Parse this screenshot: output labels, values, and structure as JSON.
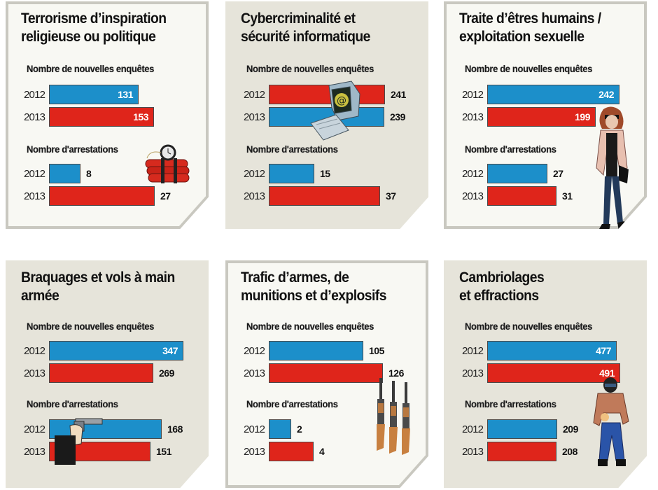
{
  "chart_data": [
    {
      "type": "bar",
      "orientation": "horizontal",
      "title": "Terrorisme d’inspiration religieuse ou politique",
      "categories": [
        "2012",
        "2013"
      ],
      "sections": [
        {
          "label": "Nombre de nouvelles enquêtes",
          "values": [
            131,
            153
          ],
          "colors": [
            "blue",
            "red"
          ]
        },
        {
          "label": "Nombre d'arrestations",
          "values": [
            8,
            27
          ],
          "colors": [
            "blue",
            "red"
          ]
        }
      ],
      "illustration": "dynamite-bomb-icon"
    },
    {
      "type": "bar",
      "orientation": "horizontal",
      "title": "Cybercriminalité et sécurité informatique",
      "categories": [
        "2012",
        "2013"
      ],
      "sections": [
        {
          "label": "Nombre de nouvelles enquêtes",
          "values": [
            241,
            239
          ],
          "colors": [
            "red",
            "blue"
          ]
        },
        {
          "label": "Nombre d'arrestations",
          "values": [
            15,
            37
          ],
          "colors": [
            "blue",
            "red"
          ]
        }
      ],
      "illustration": "computer-icon"
    },
    {
      "type": "bar",
      "orientation": "horizontal",
      "title": "Traite d’êtres humains / exploitation sexuelle",
      "categories": [
        "2012",
        "2013"
      ],
      "sections": [
        {
          "label": "Nombre de nouvelles enquêtes",
          "values": [
            242,
            199
          ],
          "colors": [
            "blue",
            "red"
          ]
        },
        {
          "label": "Nombre d'arrestations",
          "values": [
            27,
            31
          ],
          "colors": [
            "blue",
            "red"
          ]
        }
      ],
      "illustration": "woman-figure-icon"
    },
    {
      "type": "bar",
      "orientation": "horizontal",
      "title": "Braquages et vols à main armée",
      "categories": [
        "2012",
        "2013"
      ],
      "sections": [
        {
          "label": "Nombre de nouvelles enquêtes",
          "values": [
            347,
            269
          ],
          "colors": [
            "blue",
            "red"
          ]
        },
        {
          "label": "Nombre d'arrestations",
          "values": [
            168,
            151
          ],
          "colors": [
            "blue",
            "red"
          ]
        }
      ],
      "illustration": "hand-gun-icon"
    },
    {
      "type": "bar",
      "orientation": "horizontal",
      "title": "Trafic d’armes, de munitions et d’explosifs",
      "categories": [
        "2012",
        "2013"
      ],
      "sections": [
        {
          "label": "Nombre de nouvelles enquêtes",
          "values": [
            105,
            126
          ],
          "colors": [
            "blue",
            "red"
          ]
        },
        {
          "label": "Nombre d'arrestations",
          "values": [
            2,
            4
          ],
          "colors": [
            "blue",
            "red"
          ]
        }
      ],
      "illustration": "rifles-icon"
    },
    {
      "type": "bar",
      "orientation": "horizontal",
      "title": "Cambriolages et effractions",
      "categories": [
        "2012",
        "2013"
      ],
      "sections": [
        {
          "label": "Nombre de nouvelles enquêtes",
          "values": [
            477,
            491
          ],
          "colors": [
            "blue",
            "red"
          ]
        },
        {
          "label": "Nombre d'arrestations",
          "values": [
            209,
            208
          ],
          "colors": [
            "blue",
            "red"
          ]
        }
      ],
      "illustration": "burglar-icon"
    }
  ],
  "colors": {
    "blue": "#1c8fca",
    "red": "#df251b"
  }
}
